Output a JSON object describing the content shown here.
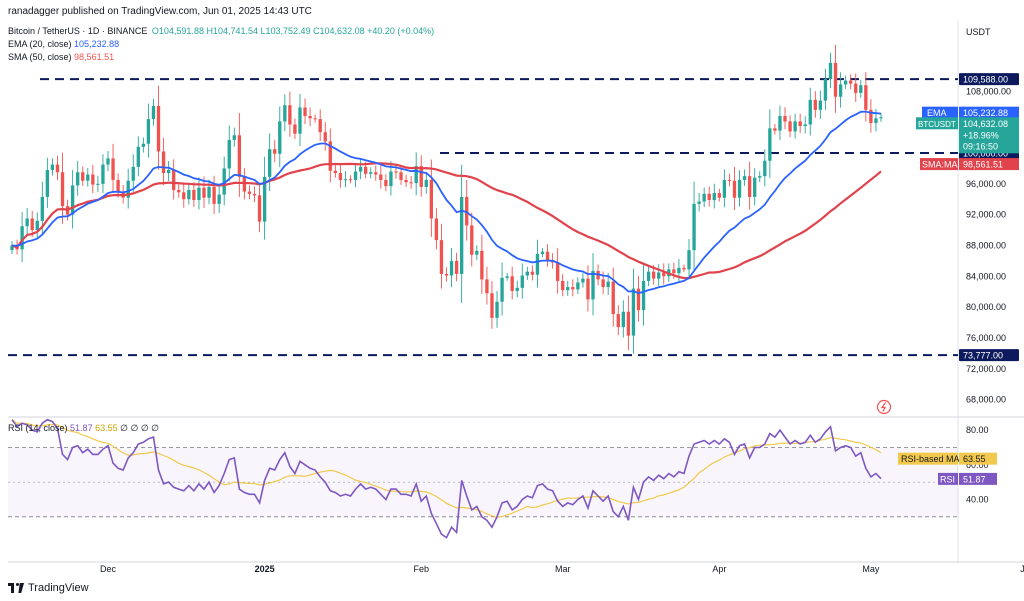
{
  "header": {
    "published": "ranadagger published on TradingView.com, Jun 01, 2025 14:43 UTC"
  },
  "legend": {
    "symbol": "Bitcoin / TetherUS · 1D · BINANCE",
    "ohlc": "O104,591.88 H104,741.54 L103,752.49 C104,632.08 +40.20 (+0.04%)",
    "ema_label": "EMA (20, close)",
    "ema_value": "105,232.88",
    "sma_label": "SMA (50, close)",
    "sma_value": "98,561.51",
    "rsi_label": "RSI (14, close)",
    "rsi_value": "51.87",
    "rsi_ma_value": "63.55",
    "rsi_extra": "∅ ∅ ∅ ∅"
  },
  "currency": "USDT",
  "price_axis": {
    "ticks": [
      "108,000.00",
      "104,000.00",
      "100,000.00",
      "96,000.00",
      "92,000.00",
      "88,000.00",
      "84,000.00",
      "80,000.00",
      "76,000.00",
      "72,000.00",
      "68,000.00"
    ],
    "tick_values": [
      108000,
      104000,
      100000,
      96000,
      92000,
      88000,
      84000,
      80000,
      76000,
      72000,
      68000
    ],
    "range": [
      66000,
      117000
    ]
  },
  "rsi_axis": {
    "ticks": [
      "80.00",
      "60.00",
      "40.00"
    ],
    "tick_values": [
      80,
      60,
      40
    ],
    "range": [
      12,
      87
    ]
  },
  "time_axis": [
    "Dec",
    "2025",
    "Feb",
    "Mar",
    "Apr",
    "May",
    "Jun"
  ],
  "labels": {
    "level_109588": "109,588.00",
    "ema": "EMA",
    "ema_price": "105,232.88",
    "btc": "BTCUSDT",
    "btc_price": "104,632.08",
    "btc_change": "+18.96%",
    "btc_countdown": "09:16:50",
    "level_100000": "100,000.00",
    "sma_ma": "SMA:MA",
    "sma_price": "98,561.51",
    "level_73777": "73,777.00",
    "rsi_ma": "RSI-based MA",
    "rsi_ma_val": "63.55",
    "rsi": "RSI",
    "rsi_val": "51.87"
  },
  "brand": "TradingView",
  "colors": {
    "up": "#26a69a",
    "down": "#ef5350",
    "ema": "#2962ff",
    "sma": "#e0434c",
    "rsi": "#7e57c2",
    "rsi_ma": "#f2c94c",
    "level": "#0d1b5e"
  },
  "chart_data": {
    "type": "candlestick",
    "symbol": "BTCUSDT",
    "timeframe": "1D",
    "start_date": "2024-11-12",
    "end_date": "2025-06-01",
    "y_range": [
      66000,
      117000
    ],
    "horizontal_levels": [
      109588,
      100000,
      73777
    ],
    "close": [
      88000,
      87500,
      90500,
      91500,
      90000,
      91200,
      94300,
      97800,
      98500,
      97500,
      93100,
      92000,
      95800,
      97500,
      96400,
      97200,
      95900,
      96000,
      98500,
      99300,
      96500,
      95000,
      94200,
      96400,
      98200,
      100800,
      101200,
      104400,
      106100,
      100200,
      97400,
      97800,
      95200,
      94900,
      94000,
      95200,
      93900,
      95500,
      94200,
      95600,
      93400,
      94600,
      98000,
      101700,
      102300,
      96900,
      95000,
      94700,
      94500,
      91100,
      96900,
      100500,
      99900,
      104100,
      106200,
      103700,
      102500,
      105900,
      104800,
      104500,
      104400,
      102700,
      101500,
      97700,
      97400,
      96500,
      96600,
      96500,
      97600,
      98200,
      97300,
      97500,
      97200,
      96500,
      95700,
      97600,
      97500,
      96500,
      96200,
      96100,
      98300,
      95600,
      96500,
      91500,
      88700,
      84300,
      84100,
      86000,
      84300,
      94300,
      90600,
      86800,
      87300,
      83600,
      81800,
      78600,
      80700,
      83800,
      84000,
      82100,
      82500,
      84100,
      84600,
      84200,
      86900,
      87200,
      86100,
      85800,
      83400,
      82200,
      82600,
      82300,
      83200,
      83700,
      81000,
      84700,
      83600,
      82600,
      83300,
      79100,
      77400,
      79400,
      76300,
      82400,
      79600,
      83400,
      84600,
      83700,
      84500,
      84000,
      84900,
      84400,
      85100,
      84900,
      87400,
      93400,
      93700,
      94700,
      93900,
      94800,
      94200,
      96500,
      96400,
      94200,
      96500,
      97000,
      94300,
      96800,
      97000,
      99000,
      103200,
      102900,
      104800,
      104100,
      102800,
      104100,
      103500,
      103700,
      106900,
      105600,
      106800,
      109600,
      111700,
      107300,
      108900,
      109400,
      109000,
      107800,
      108800,
      105600,
      103900,
      104500,
      104632
    ],
    "ema20_last": 105232.88,
    "sma50_last": 98561.51,
    "rsi": [
      86,
      82,
      84,
      83,
      80,
      79,
      84,
      86,
      85,
      81,
      66,
      63,
      70,
      71,
      67,
      69,
      66,
      66,
      69,
      71,
      61,
      58,
      57,
      64,
      67,
      72,
      73,
      75,
      76,
      57,
      49,
      50,
      47,
      46,
      45,
      48,
      45,
      49,
      46,
      50,
      44,
      48,
      55,
      63,
      64,
      46,
      44,
      43,
      43,
      38,
      51,
      58,
      57,
      63,
      67,
      59,
      55,
      62,
      60,
      58,
      57,
      53,
      50,
      45,
      44,
      42,
      43,
      42,
      46,
      49,
      46,
      47,
      46,
      43,
      40,
      46,
      46,
      43,
      43,
      42,
      49,
      39,
      42,
      32,
      26,
      20,
      18,
      24,
      21,
      51,
      42,
      34,
      36,
      30,
      28,
      24,
      30,
      38,
      39,
      34,
      36,
      40,
      42,
      41,
      48,
      49,
      46,
      45,
      39,
      36,
      38,
      37,
      40,
      42,
      35,
      45,
      42,
      39,
      42,
      33,
      30,
      36,
      28,
      47,
      40,
      50,
      53,
      51,
      54,
      52,
      55,
      53,
      56,
      55,
      65,
      72,
      73,
      74,
      72,
      74,
      72,
      75,
      73,
      66,
      71,
      72,
      64,
      70,
      70,
      72,
      78,
      76,
      80,
      76,
      72,
      74,
      72,
      73,
      77,
      73,
      75,
      79,
      82,
      68,
      70,
      71,
      70,
      65,
      67,
      58,
      53,
      55,
      52
    ],
    "rsi_last": 51.87,
    "rsi_ma_last": 63.55,
    "rsi_levels": [
      70,
      30
    ]
  }
}
